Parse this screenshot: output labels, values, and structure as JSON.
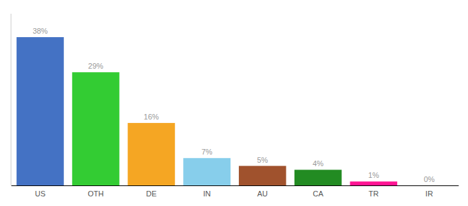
{
  "chart_data": {
    "type": "bar",
    "categories": [
      "US",
      "OTH",
      "DE",
      "IN",
      "AU",
      "CA",
      "TR",
      "IR"
    ],
    "values": [
      38,
      29,
      16,
      7,
      5,
      4,
      1,
      0
    ],
    "value_labels": [
      "38%",
      "29%",
      "16%",
      "7%",
      "5%",
      "4%",
      "1%",
      "0%"
    ],
    "colors": [
      "#4472c4",
      "#33cc33",
      "#f5a623",
      "#87ceeb",
      "#a0522d",
      "#228b22",
      "#ff1493",
      "#cccccc"
    ],
    "ylim": [
      0,
      44
    ],
    "grid": false,
    "data_labels": true,
    "tick_labels": "x"
  }
}
